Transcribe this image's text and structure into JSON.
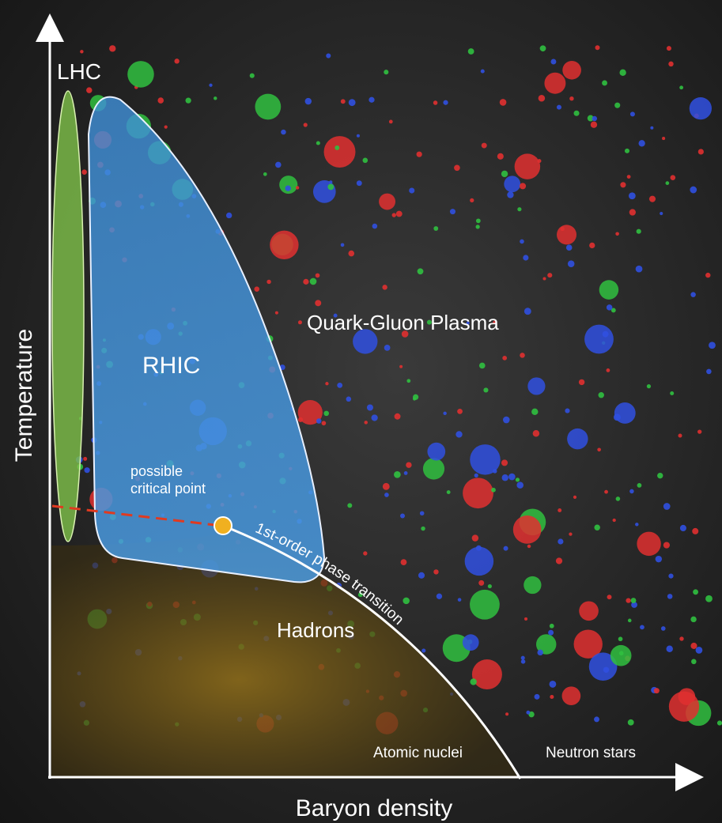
{
  "axes": {
    "y_label": "Temperature",
    "x_label": "Baryon density"
  },
  "regions": {
    "lhc": "LHC",
    "rhic": "RHIC",
    "qgp": "Quark-Gluon Plasma",
    "hadrons": "Hadrons",
    "nuclei": "Atomic nuclei",
    "neutron_stars": "Neutron stars"
  },
  "critical_point": {
    "lines": [
      "possible",
      "critical point"
    ]
  },
  "transition": "1st-order phase transition"
}
